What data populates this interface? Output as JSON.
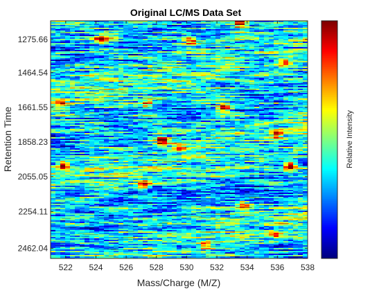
{
  "chart_data": {
    "type": "heatmap",
    "title": "Original LC/MS Data Set",
    "xlabel": "Mass/Charge (M/Z)",
    "ylabel": "Retention Time",
    "colorbar_label": "Relative Intensity",
    "colormap": "jet",
    "xlim": [
      521,
      538
    ],
    "ylim": [
      2520,
      1170
    ],
    "y_direction": "reverse",
    "x_ticks": [
      522,
      524,
      526,
      528,
      530,
      532,
      534,
      536,
      538
    ],
    "x_tick_labels": [
      "522",
      "524",
      "526",
      "528",
      "530",
      "532",
      "534",
      "536",
      "538"
    ],
    "y_ticks": [
      1275.66,
      1464.54,
      1661.55,
      1858.23,
      2055.05,
      2254.11,
      2462.04
    ],
    "y_tick_labels": [
      "1275.66",
      "1464.54",
      "1661.55",
      "1858.23",
      "2055.05",
      "2254.11",
      "2462.04"
    ],
    "hotspots": [
      {
        "mz": 524.2,
        "rt": 1270,
        "intensity": 0.95
      },
      {
        "mz": 525.0,
        "rt": 1265,
        "intensity": 0.45
      },
      {
        "mz": 533.4,
        "rt": 1180,
        "intensity": 0.9
      },
      {
        "mz": 530.1,
        "rt": 1280,
        "intensity": 0.75
      },
      {
        "mz": 532.3,
        "rt": 1660,
        "intensity": 1.0
      },
      {
        "mz": 528.2,
        "rt": 1850,
        "intensity": 1.0
      },
      {
        "mz": 521.7,
        "rt": 1990,
        "intensity": 0.95
      },
      {
        "mz": 536.7,
        "rt": 1990,
        "intensity": 1.0
      },
      {
        "mz": 535.8,
        "rt": 1810,
        "intensity": 0.6
      },
      {
        "mz": 527.0,
        "rt": 2100,
        "intensity": 0.7
      },
      {
        "mz": 533.6,
        "rt": 2220,
        "intensity": 0.65
      },
      {
        "mz": 531.1,
        "rt": 2440,
        "intensity": 0.6
      },
      {
        "mz": 535.7,
        "rt": 2380,
        "intensity": 0.55
      },
      {
        "mz": 529.3,
        "rt": 1880,
        "intensity": 0.55
      },
      {
        "mz": 521.5,
        "rt": 1630,
        "intensity": 0.5
      },
      {
        "mz": 527.2,
        "rt": 1640,
        "intensity": 0.45
      },
      {
        "mz": 536.3,
        "rt": 1400,
        "intensity": 0.5
      }
    ]
  }
}
